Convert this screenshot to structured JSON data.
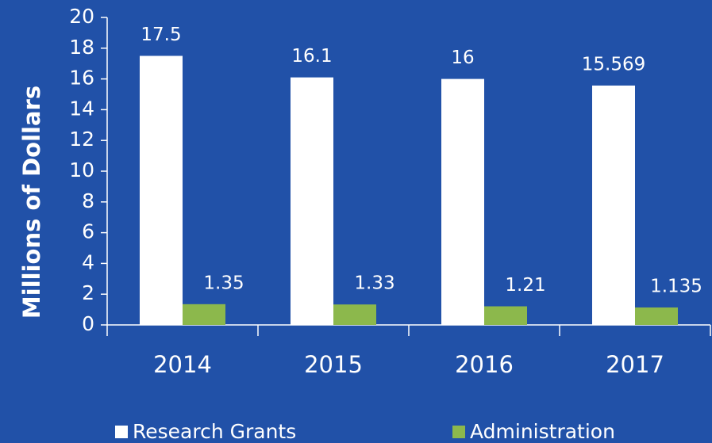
{
  "chart_data": {
    "type": "bar",
    "y_label": "Millions of Dollars",
    "categories": [
      "2014",
      "2015",
      "2016",
      "2017"
    ],
    "series": [
      {
        "name": "Research Grants",
        "color": "#ffffff",
        "values": [
          17.5,
          16.1,
          16,
          15.569
        ]
      },
      {
        "name": "Administration",
        "color": "#8cb84c",
        "values": [
          1.35,
          1.33,
          1.21,
          1.135
        ]
      }
    ],
    "ylim": [
      0,
      20
    ],
    "yticks": [
      0,
      2,
      4,
      6,
      8,
      10,
      12,
      14,
      16,
      18,
      20
    ],
    "legend": "bottom"
  }
}
